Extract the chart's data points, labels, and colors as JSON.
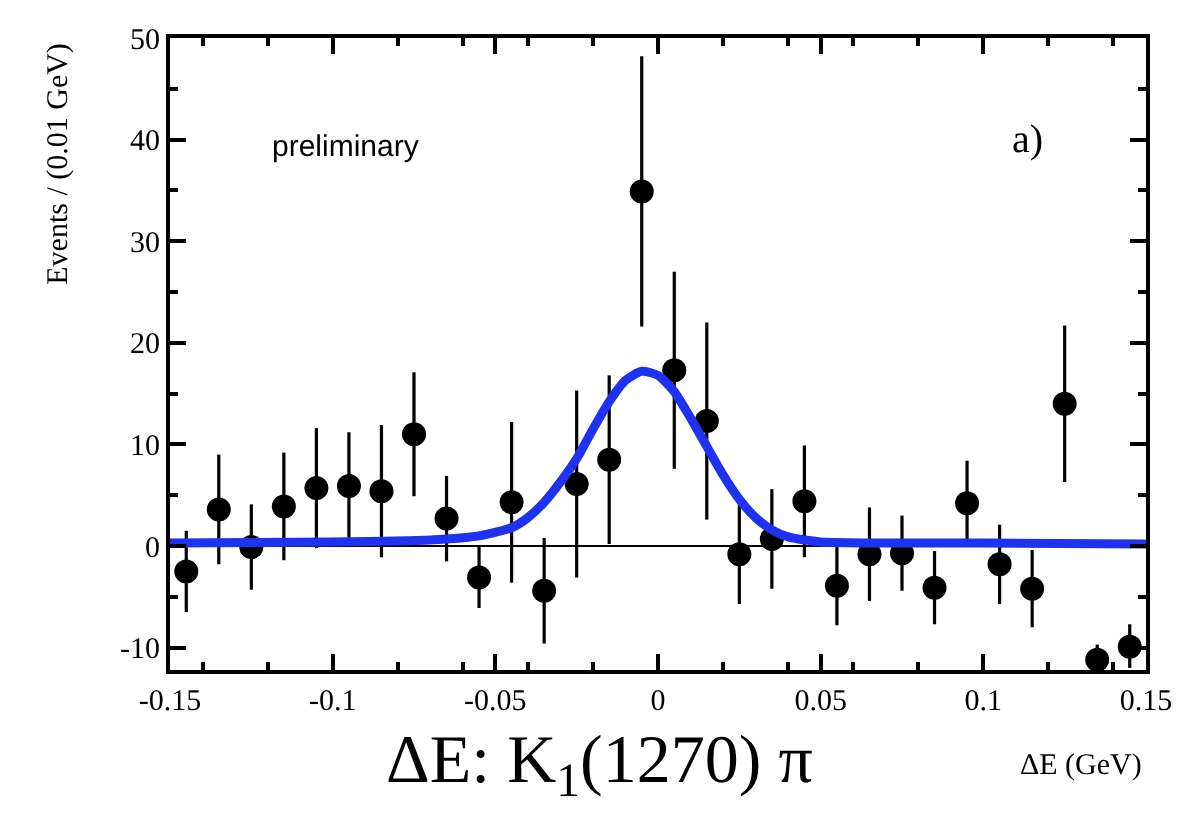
{
  "chart_data": {
    "type": "scatter",
    "title": "ΔE: K$_{1}$(1270) π",
    "xlabel": "ΔE (GeV)",
    "ylabel": "Events / (0.01 GeV)",
    "annotations": [
      "preliminary",
      "a)"
    ],
    "xlim": [
      -0.15,
      0.15
    ],
    "xticks": [
      -0.15,
      -0.1,
      -0.05,
      0,
      0.05,
      0.1,
      0.15
    ],
    "ylim": [
      -12.2,
      50
    ],
    "yticks": [
      -10,
      0,
      10,
      20,
      30,
      40,
      50
    ],
    "grid": false,
    "marker": "circle",
    "ref_lines": [
      {
        "axis": "y",
        "value": 0,
        "label": null,
        "color": "#000000",
        "line_style": "solid"
      }
    ],
    "series": [
      {
        "color": "#000000",
        "x": [
          -0.145,
          -0.135,
          -0.125,
          -0.115,
          -0.105,
          -0.095,
          -0.085,
          -0.075,
          -0.065,
          -0.055,
          -0.045,
          -0.035,
          -0.025,
          -0.015,
          -0.005,
          0.005,
          0.015,
          0.025,
          0.035,
          0.045,
          0.055,
          0.065,
          0.075,
          0.085,
          0.095,
          0.105,
          0.115,
          0.125,
          0.135,
          0.145
        ],
        "values": [
          -2.5,
          3.6,
          -0.1,
          3.9,
          5.7,
          5.9,
          5.4,
          11.0,
          2.7,
          -3.1,
          4.3,
          -4.4,
          6.1,
          8.5,
          34.9,
          17.3,
          12.3,
          -0.8,
          0.7,
          4.4,
          -3.9,
          -0.8,
          -0.7,
          -4.1,
          4.2,
          -1.8,
          -4.2,
          14.0,
          -11.2,
          -9.9
        ],
        "errors": [
          4.0,
          5.4,
          4.2,
          5.3,
          5.9,
          5.3,
          6.5,
          6.1,
          4.2,
          3.0,
          7.9,
          5.2,
          9.2,
          8.3,
          13.3,
          9.7,
          9.7,
          4.9,
          4.9,
          5.5,
          3.9,
          4.6,
          3.7,
          3.6,
          4.2,
          3.9,
          3.8,
          7.7,
          [
            -11.2,
            -9.7
          ],
          [
            -12.0,
            -7.7
          ]
        ]
      },
      {
        "type": "line",
        "color": "#1e32f0",
        "marker": "none",
        "x": [
          -0.15,
          -0.1,
          -0.07,
          -0.055,
          -0.045,
          -0.04,
          -0.035,
          -0.03,
          -0.025,
          -0.02,
          -0.015,
          -0.01,
          -0.005,
          0.0,
          0.005,
          0.01,
          0.015,
          0.02,
          0.025,
          0.03,
          0.035,
          0.04,
          0.05,
          0.07,
          0.1,
          0.15
        ],
        "values": [
          0.3,
          0.4,
          0.6,
          1.0,
          1.8,
          2.8,
          4.3,
          6.3,
          8.6,
          11.5,
          14.2,
          16.3,
          17.2,
          16.8,
          15.2,
          12.6,
          9.8,
          7.0,
          4.6,
          2.8,
          1.6,
          0.9,
          0.4,
          0.3,
          0.3,
          0.2
        ]
      }
    ]
  }
}
